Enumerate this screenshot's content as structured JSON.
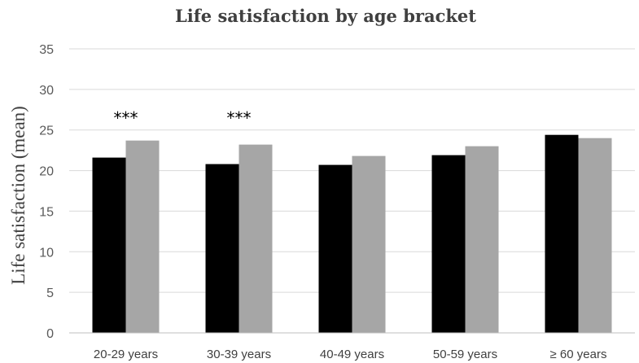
{
  "chart_data": {
    "type": "bar",
    "title": "Life satisfaction by age bracket",
    "xlabel": "",
    "ylabel": "Life satisfaction (mean)",
    "ylim": [
      0,
      35
    ],
    "yticks": [
      0,
      5,
      10,
      15,
      20,
      25,
      30,
      35
    ],
    "grid": true,
    "legend": "none",
    "categories": [
      "20-29 years",
      "30-39 years",
      "40-49 years",
      "50-59 years",
      "≥ 60 years"
    ],
    "series": [
      {
        "color": "#000000",
        "values": [
          21.6,
          20.8,
          20.7,
          21.9,
          24.4
        ]
      },
      {
        "color": "#a6a6a6",
        "values": [
          23.7,
          23.2,
          21.8,
          23.0,
          24.0
        ]
      }
    ],
    "annotations": [
      {
        "category": "20-29 years",
        "text": "***"
      },
      {
        "category": "30-39 years",
        "text": "***"
      }
    ]
  }
}
